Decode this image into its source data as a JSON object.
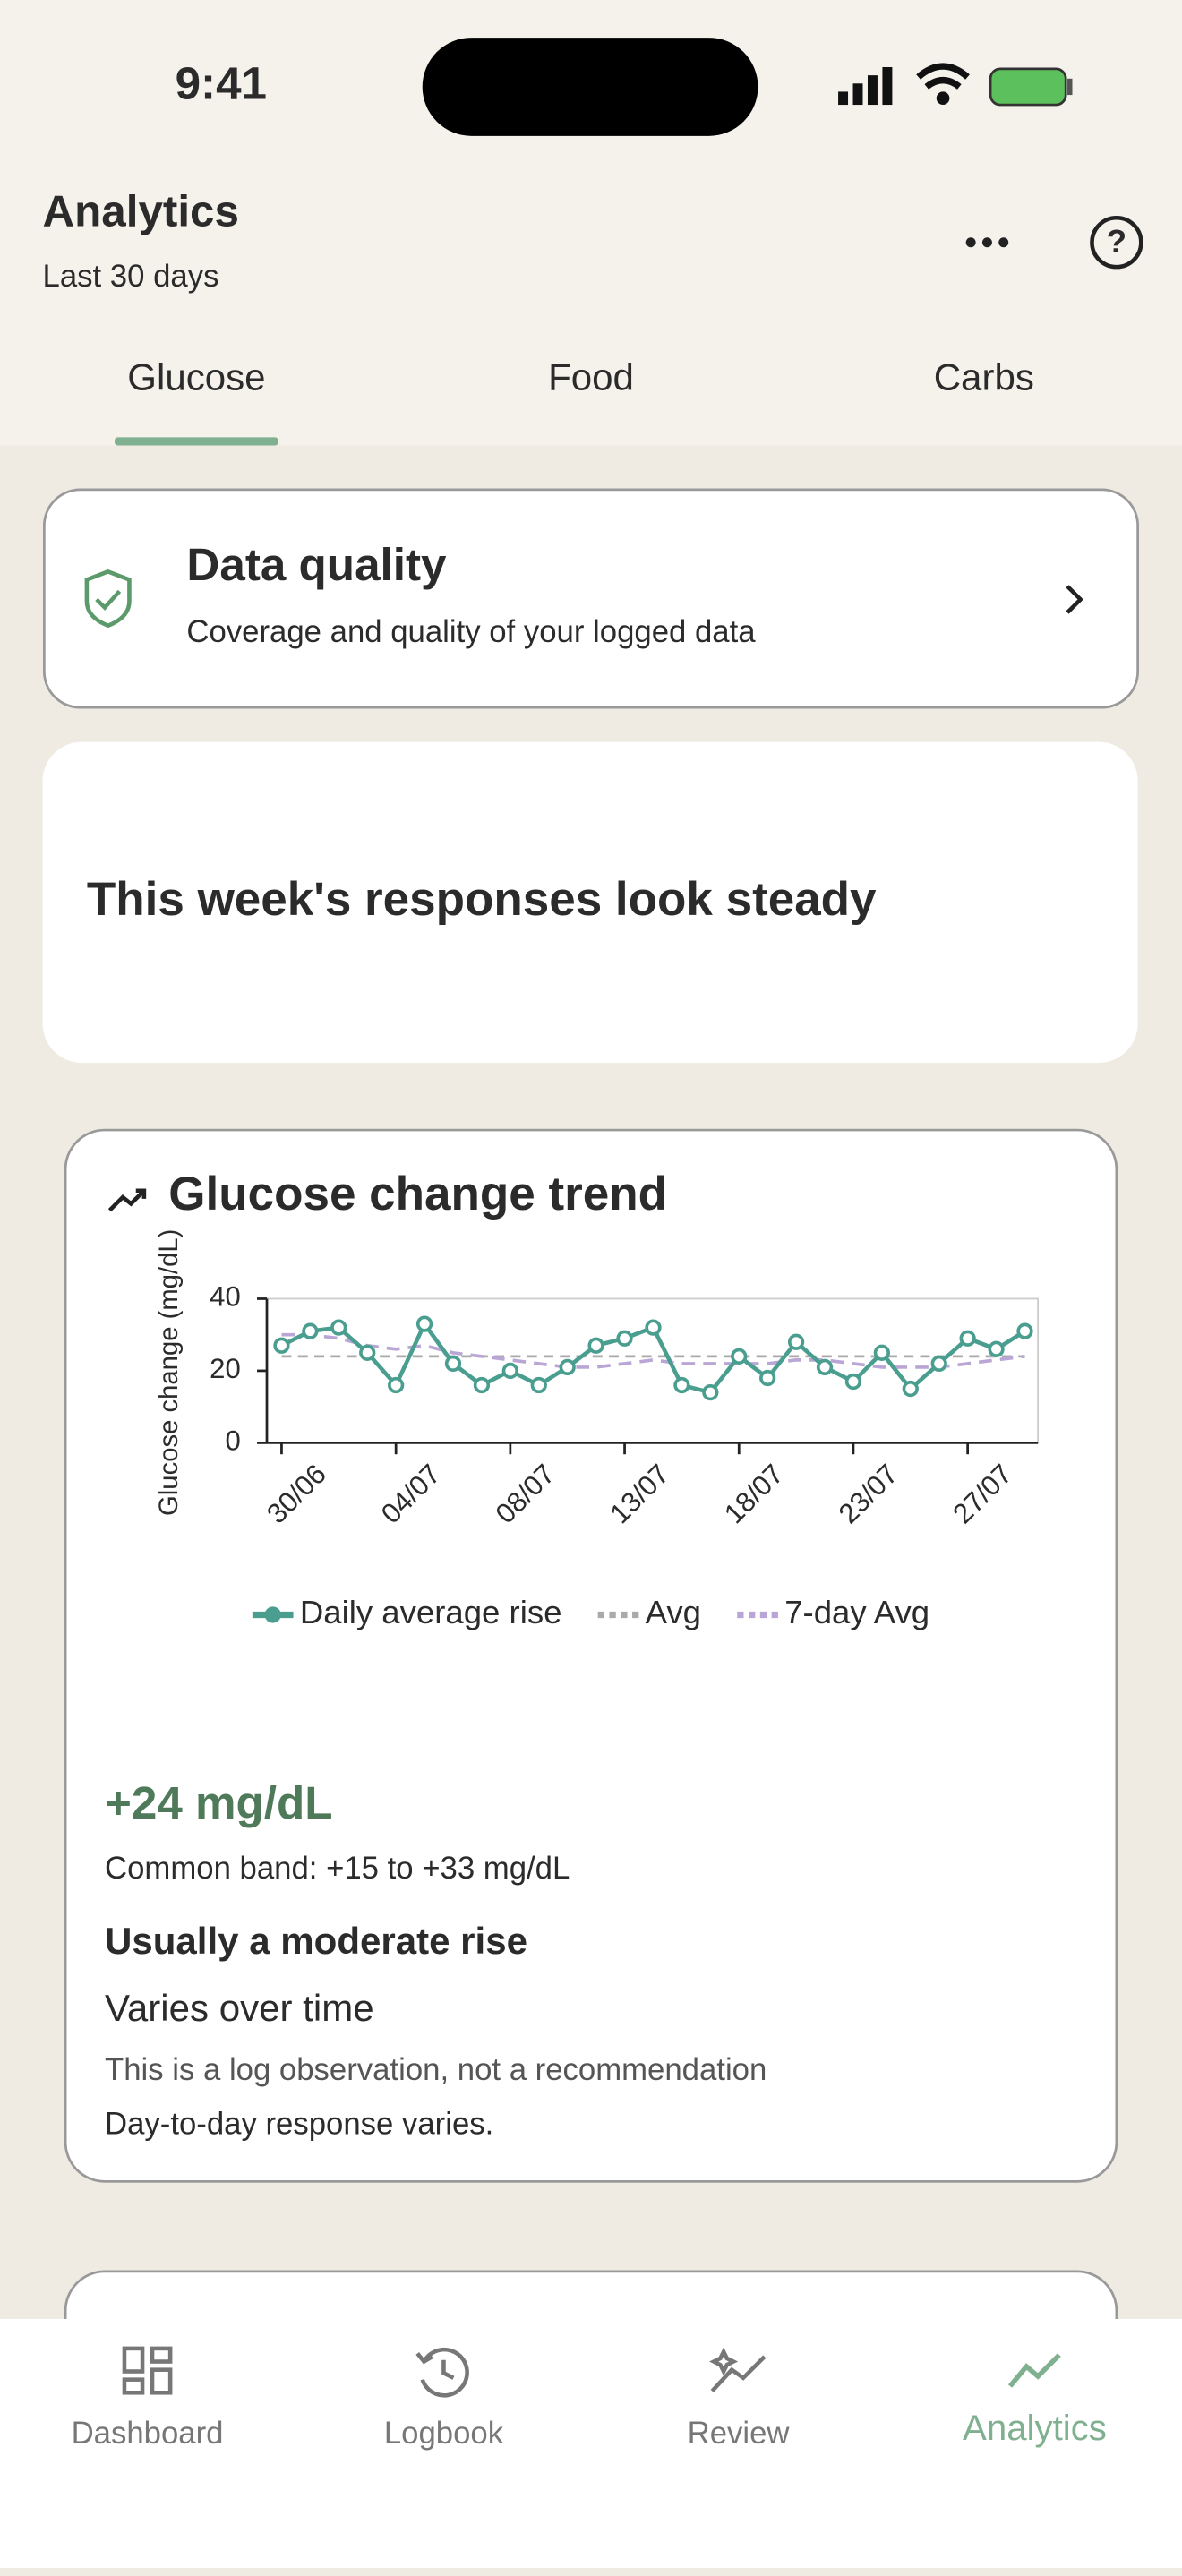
{
  "status_bar": {
    "time": "9:41"
  },
  "header": {
    "title": "Analytics",
    "subtitle": "Last 30 days"
  },
  "tabs": [
    "Glucose",
    "Food",
    "Carbs"
  ],
  "data_quality": {
    "title": "Data quality",
    "subtitle": "Coverage and quality of your logged data"
  },
  "insight": {
    "title": "This week's responses look steady"
  },
  "trend_card": {
    "title": "Glucose change trend",
    "chart_data": {
      "type": "line",
      "ylabel": "Glucose change (mg/dL)",
      "categories": [
        "30/06",
        null,
        null,
        null,
        "04/07",
        null,
        null,
        null,
        "08/07",
        null,
        null,
        null,
        "13/07",
        null,
        null,
        null,
        "18/07",
        null,
        null,
        null,
        "23/07",
        null,
        null,
        null,
        "27/07",
        null,
        null
      ],
      "series": [
        {
          "name": "Daily average rise",
          "color": "#4a9e8f",
          "values": [
            27,
            31,
            32,
            25,
            16,
            33,
            22,
            16,
            20,
            16,
            21,
            27,
            29,
            32,
            16,
            14,
            24,
            18,
            28,
            21,
            17,
            25,
            15,
            22,
            29,
            26,
            31
          ]
        },
        {
          "name": "7-day Avg",
          "color": "#b9a6d6",
          "values": [
            30,
            30,
            29,
            27,
            26,
            27,
            25,
            24,
            23,
            22,
            21,
            21,
            22,
            23,
            22,
            22,
            22,
            22,
            23,
            23,
            22,
            21,
            21,
            21,
            22,
            23,
            24
          ]
        }
      ],
      "reference_lines": [
        {
          "name": "Avg",
          "value": 24,
          "color": "#aaaaaa"
        }
      ],
      "ylim": [
        0,
        40
      ],
      "yticks": [
        0,
        20,
        40
      ]
    },
    "stat": "+24 mg/dL",
    "band": "Common band: +15 to +33 mg/dL",
    "summary": "Usually a moderate rise",
    "variation": "Varies over time",
    "disclaimer": "This is a log observation, not a recommendation",
    "note": "Day-to-day response varies."
  },
  "nav": [
    "Dashboard",
    "Logbook",
    "Review",
    "Analytics"
  ]
}
